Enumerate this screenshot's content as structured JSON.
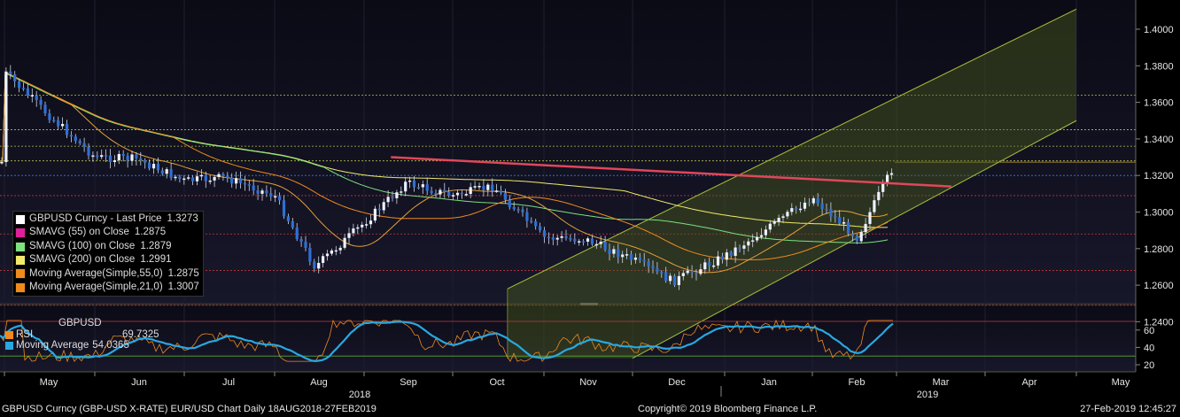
{
  "chart_data": {
    "type": "candlestick",
    "title": "GBPUSD Curncy (GBP-USD X-RATE) EUR/USD Chart",
    "yaxis": {
      "ticks": [
        "1.4000",
        "1.3800",
        "1.3600",
        "1.3400",
        "1.3200",
        "1.3000",
        "1.2800",
        "1.2600",
        "1.2400"
      ],
      "ylim": [
        1.22,
        1.415
      ]
    },
    "xaxis": {
      "month_labels": [
        "May",
        "Jun",
        "Jul",
        "Aug",
        "Sep",
        "Oct",
        "Nov",
        "Dec",
        "Jan",
        "Feb",
        "Mar",
        "Apr",
        "May"
      ],
      "year_labels": [
        "2018",
        "2019"
      ]
    },
    "series_points": [
      [
        "2018-05-01",
        1.3765
      ],
      [
        "2018-05-15",
        1.355
      ],
      [
        "2018-06-01",
        1.33
      ],
      [
        "2018-06-15",
        1.329
      ],
      [
        "2018-07-01",
        1.317
      ],
      [
        "2018-07-15",
        1.319
      ],
      [
        "2018-08-01",
        1.309
      ],
      [
        "2018-08-15",
        1.27
      ],
      [
        "2018-09-01",
        1.294
      ],
      [
        "2018-09-15",
        1.316
      ],
      [
        "2018-10-01",
        1.309
      ],
      [
        "2018-10-15",
        1.314
      ],
      [
        "2018-11-01",
        1.286
      ],
      [
        "2018-11-15",
        1.285
      ],
      [
        "2018-12-01",
        1.274
      ],
      [
        "2018-12-15",
        1.262
      ],
      [
        "2019-01-01",
        1.276
      ],
      [
        "2019-01-15",
        1.29
      ],
      [
        "2019-02-01",
        1.308
      ],
      [
        "2019-02-15",
        1.286
      ],
      [
        "2019-02-27",
        1.3273
      ]
    ],
    "horizontal_levels": [
      1.364,
      1.345,
      1.336,
      1.328,
      1.32,
      1.309,
      1.288,
      1.268,
      1.249
    ],
    "trendline": {
      "from": [
        "2018-09-10",
        1.33
      ],
      "to": [
        "2019-03-20",
        1.314
      ],
      "color": "#e0475a"
    },
    "channel": {
      "upper": {
        "from": [
          "2018-10-20",
          1.258
        ],
        "to": [
          "2019-05-01",
          1.411
        ]
      },
      "lower": {
        "from": [
          "2018-12-01",
          1.22
        ],
        "to": [
          "2019-05-01",
          1.35
        ]
      }
    },
    "legend": [
      {
        "label": "GBPUSD Curncy - Last Price",
        "value": "1.3273",
        "color": "#ffffff"
      },
      {
        "label": "SMAVG (55)  on Close",
        "value": "1.2875",
        "color": "#e0209a"
      },
      {
        "label": "SMAVG (100)  on Close",
        "value": "1.2879",
        "color": "#7ee07e"
      },
      {
        "label": "SMAVG (200)  on Close",
        "value": "1.2991",
        "color": "#f2ea6a"
      },
      {
        "label": "Moving Average(Simple,55,0)",
        "value": "1.2875",
        "color": "#f08a1c"
      },
      {
        "label": "Moving Average(Simple,21,0)",
        "value": "1.3007",
        "color": "#f08a1c"
      }
    ],
    "rsi_panel": {
      "title": "GBPUSD",
      "ticks": [
        "60",
        "40",
        "20"
      ],
      "legend": [
        {
          "label": "RSI",
          "value": "69.7325",
          "color": "#f08a1c"
        },
        {
          "label": "Moving Average",
          "value": "54.0365",
          "color": "#29a8e0"
        }
      ]
    }
  },
  "footer": {
    "left": "GBPUSD Curncy (GBP-USD X-RATE) EUR/USD Chart  Daily 18AUG2018-27FEB2019",
    "center": "Copyright© 2019 Bloomberg Finance L.P.",
    "right": "27-Feb-2019 12:45:27"
  }
}
